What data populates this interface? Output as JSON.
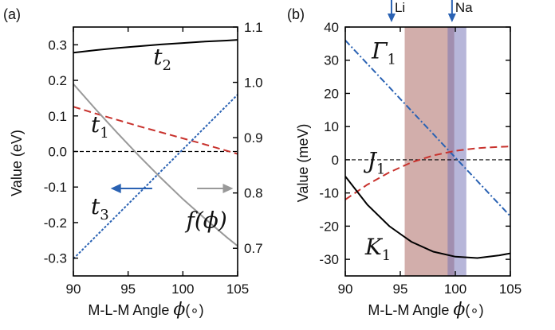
{
  "chart_data": [
    {
      "panel": "(a)",
      "type": "line",
      "xlabel_prefix": "M-L-M Angle ",
      "xlabel_symbol": "ϕ",
      "xlabel_unit": "(∘)",
      "ylabel": "Value (eV)",
      "xlim": [
        90,
        105
      ],
      "ylim": [
        -0.35,
        0.35
      ],
      "y2lim": [
        0.65,
        1.1
      ],
      "xticks": [
        90,
        95,
        100,
        105
      ],
      "yticks": [
        -0.3,
        -0.2,
        -0.1,
        0.0,
        0.1,
        0.2,
        0.3
      ],
      "yticklabels": [
        "-0.3",
        "-0.2",
        "-0.1",
        "0.0",
        "0.1",
        "0.2",
        "0.3"
      ],
      "y2ticks": [
        0.7,
        0.8,
        0.9,
        1.0,
        1.1
      ],
      "y2ticklabels": [
        "0.7",
        "0.8",
        "0.9",
        "1.0",
        "1.1"
      ],
      "series": [
        {
          "name": "t2",
          "axis": "left",
          "color": "#000000",
          "style": "solid",
          "x": [
            90,
            92,
            94,
            96,
            98,
            100,
            102,
            104,
            105
          ],
          "values": [
            0.278,
            0.285,
            0.291,
            0.296,
            0.301,
            0.305,
            0.309,
            0.312,
            0.314
          ]
        },
        {
          "name": "t1",
          "axis": "left",
          "color": "#c8322d",
          "style": "dashed",
          "x": [
            90,
            92,
            94,
            96,
            98,
            100,
            102,
            104,
            105
          ],
          "values": [
            0.126,
            0.107,
            0.089,
            0.071,
            0.054,
            0.037,
            0.02,
            0.002,
            -0.007
          ]
        },
        {
          "name": "t3",
          "axis": "left",
          "color": "#2a62b3",
          "style": "dotted",
          "x": [
            90,
            105
          ],
          "values": [
            -0.302,
            0.16
          ]
        },
        {
          "name": "f(ϕ)",
          "axis": "right",
          "color": "#999999",
          "style": "solid",
          "x": [
            90,
            92,
            94,
            96,
            98,
            100,
            102,
            104,
            105
          ],
          "values": [
            0.997,
            0.952,
            0.909,
            0.867,
            0.827,
            0.789,
            0.754,
            0.72,
            0.704
          ]
        }
      ],
      "reference_line": {
        "y": 0.0,
        "style": "dashed",
        "color": "#000000"
      },
      "annotations": [
        {
          "text": "t",
          "sub": "2",
          "x": 97.3,
          "y": 0.245
        },
        {
          "text": "t",
          "sub": "1",
          "x": 91.6,
          "y": 0.055
        },
        {
          "text": "t",
          "sub": "3",
          "x": 91.6,
          "y": -0.175
        },
        {
          "text": "f(ϕ)",
          "sub": "",
          "x": 100.3,
          "y": -0.215
        }
      ],
      "arrows": [
        {
          "direction": "left",
          "color": "#2a62b3",
          "x_from": 97.2,
          "x_to": 93.4,
          "y": -0.104
        },
        {
          "direction": "right",
          "color": "#999999",
          "x_from": 101.3,
          "x_to": 104.6,
          "y": -0.104
        }
      ]
    },
    {
      "panel": "(b)",
      "type": "line",
      "xlabel_prefix": "M-L-M Angle ",
      "xlabel_symbol": "ϕ",
      "xlabel_unit": "(∘)",
      "ylabel": "Value (meV)",
      "xlim": [
        90,
        105
      ],
      "ylim": [
        -35,
        40
      ],
      "xticks": [
        90,
        95,
        100,
        105
      ],
      "yticks": [
        -30,
        -20,
        -10,
        0,
        10,
        20,
        30,
        40
      ],
      "yticklabels": [
        "-30",
        "-20",
        "-10",
        "0",
        "10",
        "20",
        "30",
        "40"
      ],
      "series": [
        {
          "name": "Γ1",
          "color": "#2a62b3",
          "style": "dashdot",
          "x": [
            90,
            105
          ],
          "values": [
            36.0,
            -17.0
          ]
        },
        {
          "name": "J1",
          "color": "#c8322d",
          "style": "dashed",
          "x": [
            90,
            92,
            94,
            96,
            98,
            100,
            102,
            104,
            105
          ],
          "values": [
            -12.0,
            -7.5,
            -3.8,
            -0.8,
            1.3,
            2.7,
            3.5,
            3.9,
            4.0
          ]
        },
        {
          "name": "K1",
          "color": "#000000",
          "style": "solid",
          "x": [
            90,
            92,
            94,
            96,
            98,
            100,
            102,
            104,
            105
          ],
          "values": [
            -5.0,
            -13.5,
            -20.0,
            -24.7,
            -27.7,
            -29.2,
            -29.6,
            -28.8,
            -28.2
          ]
        }
      ],
      "reference_line": {
        "y": 0,
        "style": "dashed",
        "color": "#000000"
      },
      "bands": [
        {
          "x0": 95.4,
          "x1": 99.9,
          "color": "#a65d57",
          "opacity": 0.5
        },
        {
          "x0": 99.3,
          "x1": 101.0,
          "color": "#6f6db4",
          "opacity": 0.5
        }
      ],
      "ion_markers": [
        {
          "label": "Li",
          "x": 94.2
        },
        {
          "label": "Na",
          "x": 99.7
        }
      ],
      "annotations": [
        {
          "text": "Γ",
          "sub": "1",
          "x": 92.4,
          "y": 30.5
        },
        {
          "text": "J",
          "sub": "1",
          "x": 92.0,
          "y": -2.5
        },
        {
          "text": "K",
          "sub": "1",
          "x": 91.8,
          "y": -28.5
        }
      ]
    }
  ]
}
